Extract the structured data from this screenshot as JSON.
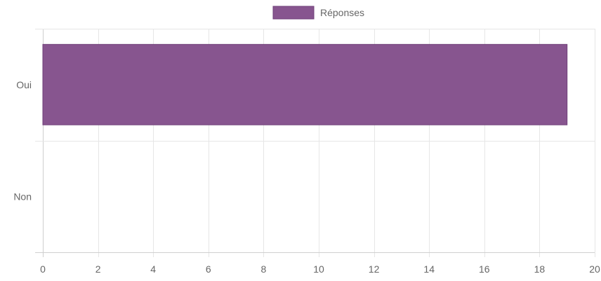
{
  "chart_data": {
    "type": "bar",
    "orientation": "horizontal",
    "categories": [
      "Oui",
      "Non"
    ],
    "series": [
      {
        "name": "Réponses",
        "values": [
          19,
          0
        ],
        "color": "#87558f"
      }
    ],
    "xlim": [
      0,
      20
    ],
    "x_ticks": [
      0,
      2,
      4,
      6,
      8,
      10,
      12,
      14,
      16,
      18,
      20
    ],
    "grid": true,
    "legend_position": "top-center",
    "title": "",
    "xlabel": "",
    "ylabel": ""
  }
}
